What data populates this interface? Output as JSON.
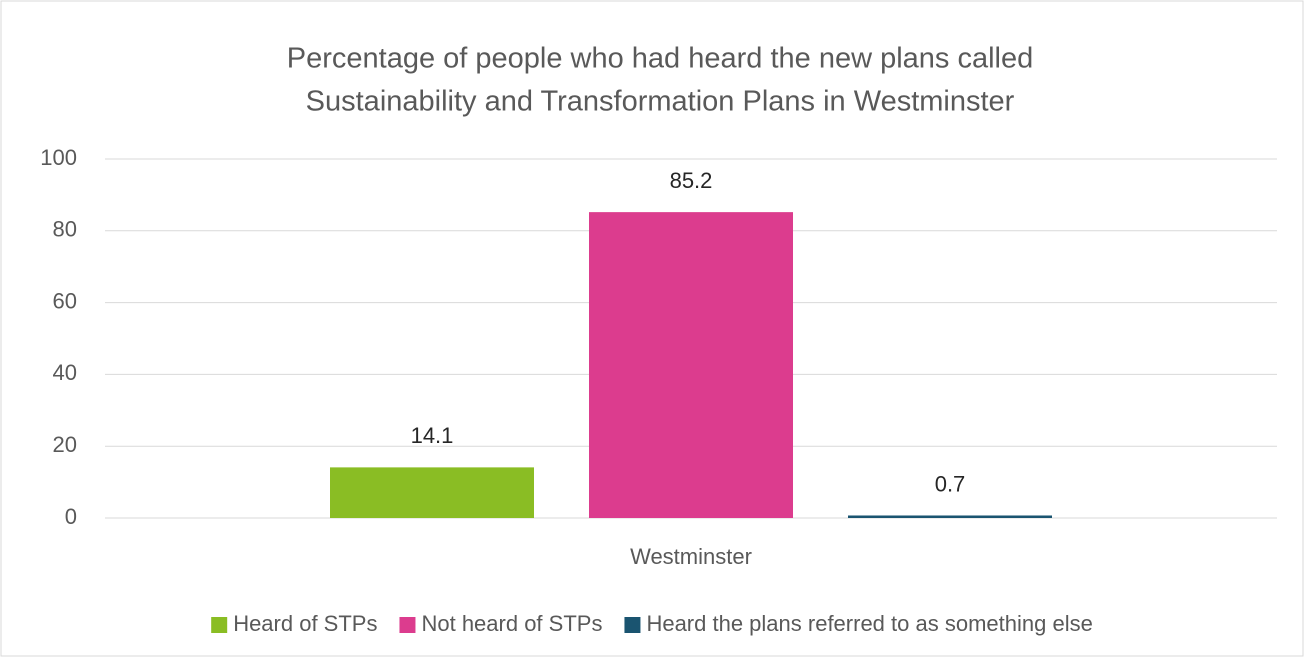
{
  "chart_data": {
    "type": "bar",
    "title": [
      "Percentage of people who had heard the new plans called",
      "Sustainability and Transformation Plans in Westminster"
    ],
    "categories": [
      "Westminster"
    ],
    "series": [
      {
        "name": "Heard of STPs",
        "color": "#8abd24",
        "values": [
          14.1
        ]
      },
      {
        "name": "Not heard of STPs",
        "color": "#dc3c8e",
        "values": [
          85.2
        ]
      },
      {
        "name": "Heard the plans referred to as something else",
        "color": "#1a5470",
        "values": [
          0.7
        ]
      }
    ],
    "ylim": [
      0,
      100
    ],
    "yticks": [
      0,
      20,
      40,
      60,
      80,
      100
    ],
    "grid": true,
    "legend": "bottom"
  }
}
